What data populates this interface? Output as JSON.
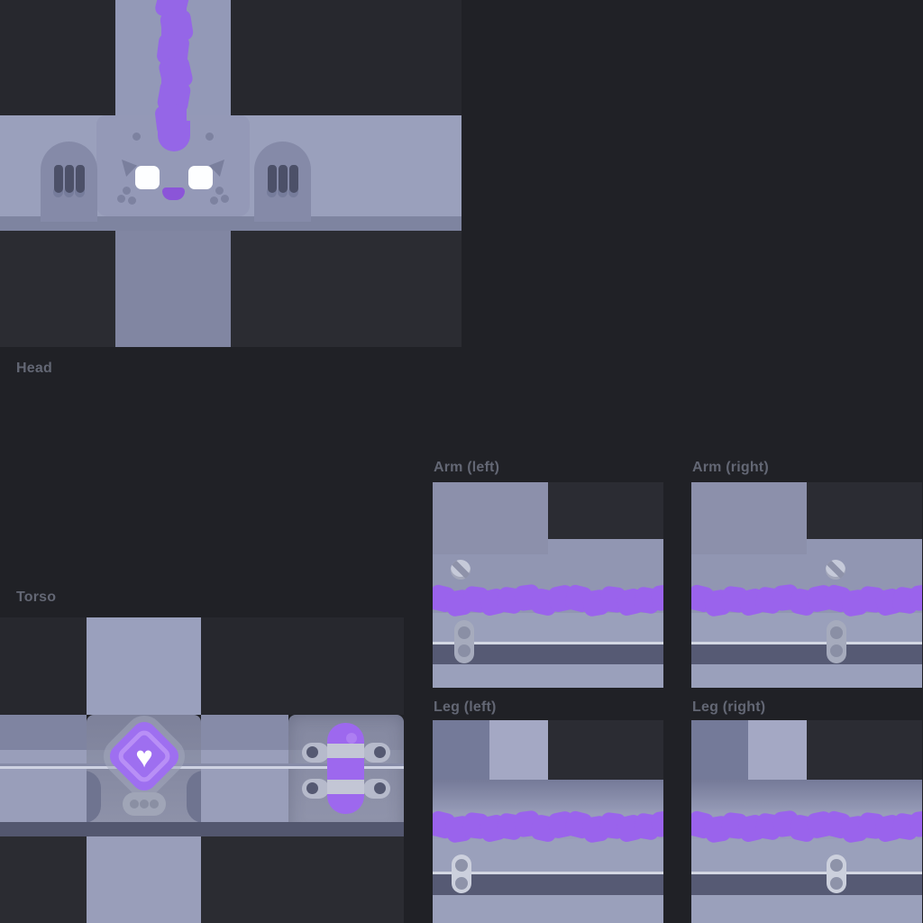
{
  "panels": {
    "head": {
      "label": "Head"
    },
    "torso": {
      "label": "Torso"
    },
    "arm_left": {
      "label": "Arm (left)"
    },
    "arm_right": {
      "label": "Arm (right)"
    },
    "leg_left": {
      "label": "Leg (left)"
    },
    "leg_right": {
      "label": "Leg (right)"
    }
  },
  "icons": {
    "heart": "♥"
  },
  "colors": {
    "page_background": "#202126",
    "texture_empty_dark": "#27282e",
    "lavender_light": "#9aa0bc",
    "lavender_mid": "#9196b2",
    "dusk_column": "#8186a2",
    "accent_purple": "#9a63ec",
    "badge_purple": "#9e6ff0",
    "seam_white": "#d3d7e3",
    "dark_band": "#565a74",
    "label_text": "#636774"
  }
}
